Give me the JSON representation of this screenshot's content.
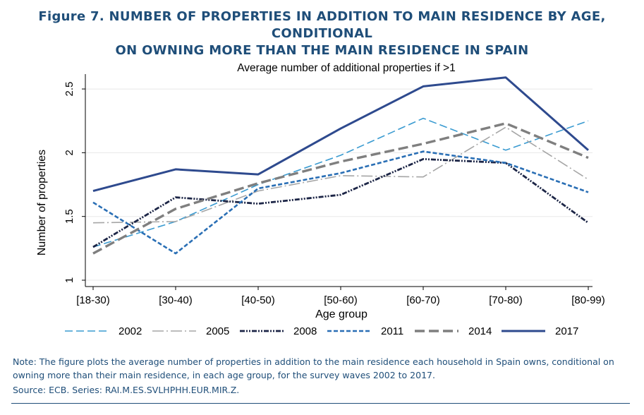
{
  "figure": {
    "title_line1": "Figure 7. NUMBER OF PROPERTIES IN ADDITION TO MAIN RESIDENCE BY AGE, CONDITIONAL",
    "title_line2": "ON OWNING MORE THAN THE MAIN RESIDENCE IN SPAIN",
    "note": "Note: The figure plots the average number of properties in addition to the main residence each household in Spain owns, conditional on owning more than their main residence, in each age group, for the survey waves 2002 to 2017.",
    "source": "Source: ECB. Series: RAI.M.ES.SVLHPHH.EUR.MIR.Z."
  },
  "colors": {
    "title": "#1f4e79",
    "s2002": "#3a9bd1",
    "s2005": "#a6a6a6",
    "s2008": "#1c2546",
    "s2011": "#2a6fb5",
    "s2014": "#7f7f7f",
    "s2017": "#2e4a8e"
  },
  "chart_data": {
    "type": "line",
    "title": "Average number of additional properties if >1",
    "xlabel": "Age group",
    "ylabel": "Number of properties",
    "categories": [
      "[18-30)",
      "[30-40)",
      "[40-50)",
      "[50-60)",
      "[60-70)",
      "[70-80)",
      "[80-99)"
    ],
    "ylim": [
      1,
      2.6
    ],
    "yticks": [
      "1",
      "1.5",
      "2",
      "2.5"
    ],
    "legend_position": "bottom",
    "series": [
      {
        "name": "2002",
        "values": [
          1.26,
          1.46,
          1.75,
          1.98,
          2.27,
          2.02,
          2.25
        ]
      },
      {
        "name": "2005",
        "values": [
          1.45,
          1.46,
          1.7,
          1.82,
          1.81,
          2.2,
          1.79
        ]
      },
      {
        "name": "2008",
        "values": [
          1.26,
          1.65,
          1.6,
          1.67,
          1.95,
          1.92,
          1.45
        ]
      },
      {
        "name": "2011",
        "values": [
          1.61,
          1.21,
          1.72,
          1.84,
          2.01,
          1.92,
          1.69
        ]
      },
      {
        "name": "2014",
        "values": [
          1.21,
          1.56,
          1.76,
          1.93,
          2.07,
          2.23,
          1.96
        ]
      },
      {
        "name": "2017",
        "values": [
          1.7,
          1.87,
          1.83,
          2.19,
          2.52,
          2.59,
          2.02
        ]
      }
    ]
  }
}
